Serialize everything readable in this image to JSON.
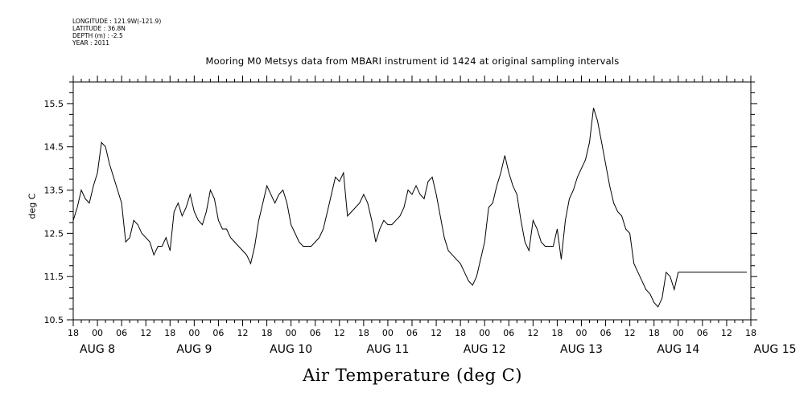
{
  "header": {
    "longitude": "LONGITUDE : 121.9W(-121.9)",
    "latitude": "LATITUDE : 36.8N",
    "depth": "DEPTH (m) : -2.5",
    "year": "YEAR : 2011"
  },
  "chart_data": {
    "type": "line",
    "title": "Mooring M0 Metsys data from MBARI instrument id 1424 at original sampling intervals",
    "xlabel": "Air Temperature (deg C)",
    "ylabel": "deg C",
    "ylim": [
      10.5,
      16.0
    ],
    "yticks": [
      10.5,
      11.5,
      12.5,
      13.5,
      14.5,
      15.5
    ],
    "ytick_labels": [
      "10.5",
      "11.5",
      "12.5",
      "13.5",
      "14.5",
      "15.5"
    ],
    "x_unit": "hours since 2011-08-07 18:00",
    "xlim": [
      0,
      168
    ],
    "xticks": [
      0,
      6,
      12,
      18,
      24,
      30,
      36,
      42,
      48,
      54,
      60,
      66,
      72,
      78,
      84,
      90,
      96,
      102,
      108,
      114,
      120,
      126,
      132,
      138,
      144,
      150,
      156,
      162,
      168
    ],
    "xtick_labels": [
      "18",
      "00",
      "06",
      "12",
      "18",
      "00",
      "06",
      "12",
      "18",
      "00",
      "06",
      "12",
      "18",
      "00",
      "06",
      "12",
      "18",
      "00",
      "06",
      "12",
      "18",
      "00",
      "06",
      "12",
      "18",
      "00",
      "06",
      "12",
      "18"
    ],
    "day_labels": [
      {
        "x": 6,
        "label": "AUG  8"
      },
      {
        "x": 30,
        "label": "AUG  9"
      },
      {
        "x": 54,
        "label": "AUG 10"
      },
      {
        "x": 78,
        "label": "AUG 11"
      },
      {
        "x": 102,
        "label": "AUG 12"
      },
      {
        "x": 126,
        "label": "AUG 13"
      },
      {
        "x": 150,
        "label": "AUG 14"
      },
      {
        "x": 174,
        "label": "AUG 15"
      }
    ],
    "series": [
      {
        "x": [
          0,
          1,
          2,
          3,
          4,
          5,
          6,
          7,
          8,
          9,
          10,
          11,
          12,
          13,
          14,
          15,
          16,
          17,
          18,
          19,
          20,
          21,
          22,
          23,
          24,
          25,
          26,
          27,
          28,
          29,
          30,
          31,
          32,
          33,
          34,
          35,
          36,
          37,
          38,
          39,
          40,
          41,
          42,
          43,
          44,
          45,
          46,
          47,
          48,
          49,
          50,
          51,
          52,
          53,
          54,
          55,
          56,
          57,
          58,
          59,
          60,
          61,
          62,
          63,
          64,
          65,
          66,
          67,
          68,
          69,
          70,
          71,
          72,
          73,
          74,
          75,
          76,
          77,
          78,
          79,
          80,
          81,
          82,
          83,
          84,
          85,
          86,
          87,
          88,
          89,
          90,
          91,
          92,
          93,
          94,
          95,
          96,
          97,
          98,
          99,
          100,
          101,
          102,
          103,
          104,
          105,
          106,
          107,
          108,
          109,
          110,
          111,
          112,
          113,
          114,
          115,
          116,
          117,
          118,
          119,
          120,
          121,
          122,
          123,
          124,
          125,
          126,
          127,
          128,
          129,
          130,
          131,
          132,
          133,
          134,
          135,
          136,
          137,
          138,
          139,
          140,
          141,
          142,
          143,
          144,
          145,
          146,
          147,
          148,
          149,
          150,
          151,
          152,
          153,
          154,
          155,
          156,
          157,
          158,
          159,
          160,
          161,
          162,
          163,
          164,
          165,
          166,
          167
        ],
        "y": [
          12.8,
          13.1,
          13.5,
          13.3,
          13.2,
          13.6,
          13.9,
          14.6,
          14.5,
          14.1,
          13.8,
          13.5,
          13.2,
          12.3,
          12.4,
          12.8,
          12.7,
          12.5,
          12.4,
          12.3,
          12.0,
          12.2,
          12.2,
          12.4,
          12.1,
          13.0,
          13.2,
          12.9,
          13.1,
          13.4,
          13.0,
          12.8,
          12.7,
          13.0,
          13.5,
          13.3,
          12.8,
          12.6,
          12.6,
          12.4,
          12.3,
          12.2,
          12.1,
          12.0,
          11.8,
          12.2,
          12.8,
          13.2,
          13.6,
          13.4,
          13.2,
          13.4,
          13.5,
          13.2,
          12.7,
          12.5,
          12.3,
          12.2,
          12.2,
          12.2,
          12.3,
          12.4,
          12.6,
          13.0,
          13.4,
          13.8,
          13.7,
          13.9,
          12.9,
          13.0,
          13.1,
          13.2,
          13.4,
          13.2,
          12.8,
          12.3,
          12.6,
          12.8,
          12.7,
          12.7,
          12.8,
          12.9,
          13.1,
          13.5,
          13.4,
          13.6,
          13.4,
          13.3,
          13.7,
          13.8,
          13.4,
          12.9,
          12.4,
          12.1,
          12.0,
          11.9,
          11.8,
          11.6,
          11.4,
          11.3,
          11.5,
          11.9,
          12.3,
          13.1,
          13.2,
          13.6,
          13.9,
          14.3,
          13.9,
          13.6,
          13.4,
          12.8,
          12.3,
          12.1,
          12.8,
          12.6,
          12.3,
          12.2,
          12.2,
          12.2,
          12.6,
          11.9,
          12.8,
          13.3,
          13.5,
          13.8,
          14.0,
          14.2,
          14.6,
          15.4,
          15.1,
          14.6,
          14.1,
          13.6,
          13.2,
          13.0,
          12.9,
          12.6,
          12.5,
          11.8,
          11.6,
          11.4,
          11.2,
          11.1,
          10.9,
          10.8,
          11.0,
          11.6,
          11.5,
          11.2,
          11.6,
          11.6,
          11.6,
          11.6,
          11.6,
          11.6,
          11.6,
          11.6,
          11.6,
          11.6,
          11.6,
          11.6,
          11.6,
          11.6,
          11.6,
          11.6,
          11.6,
          11.6
        ]
      }
    ]
  }
}
